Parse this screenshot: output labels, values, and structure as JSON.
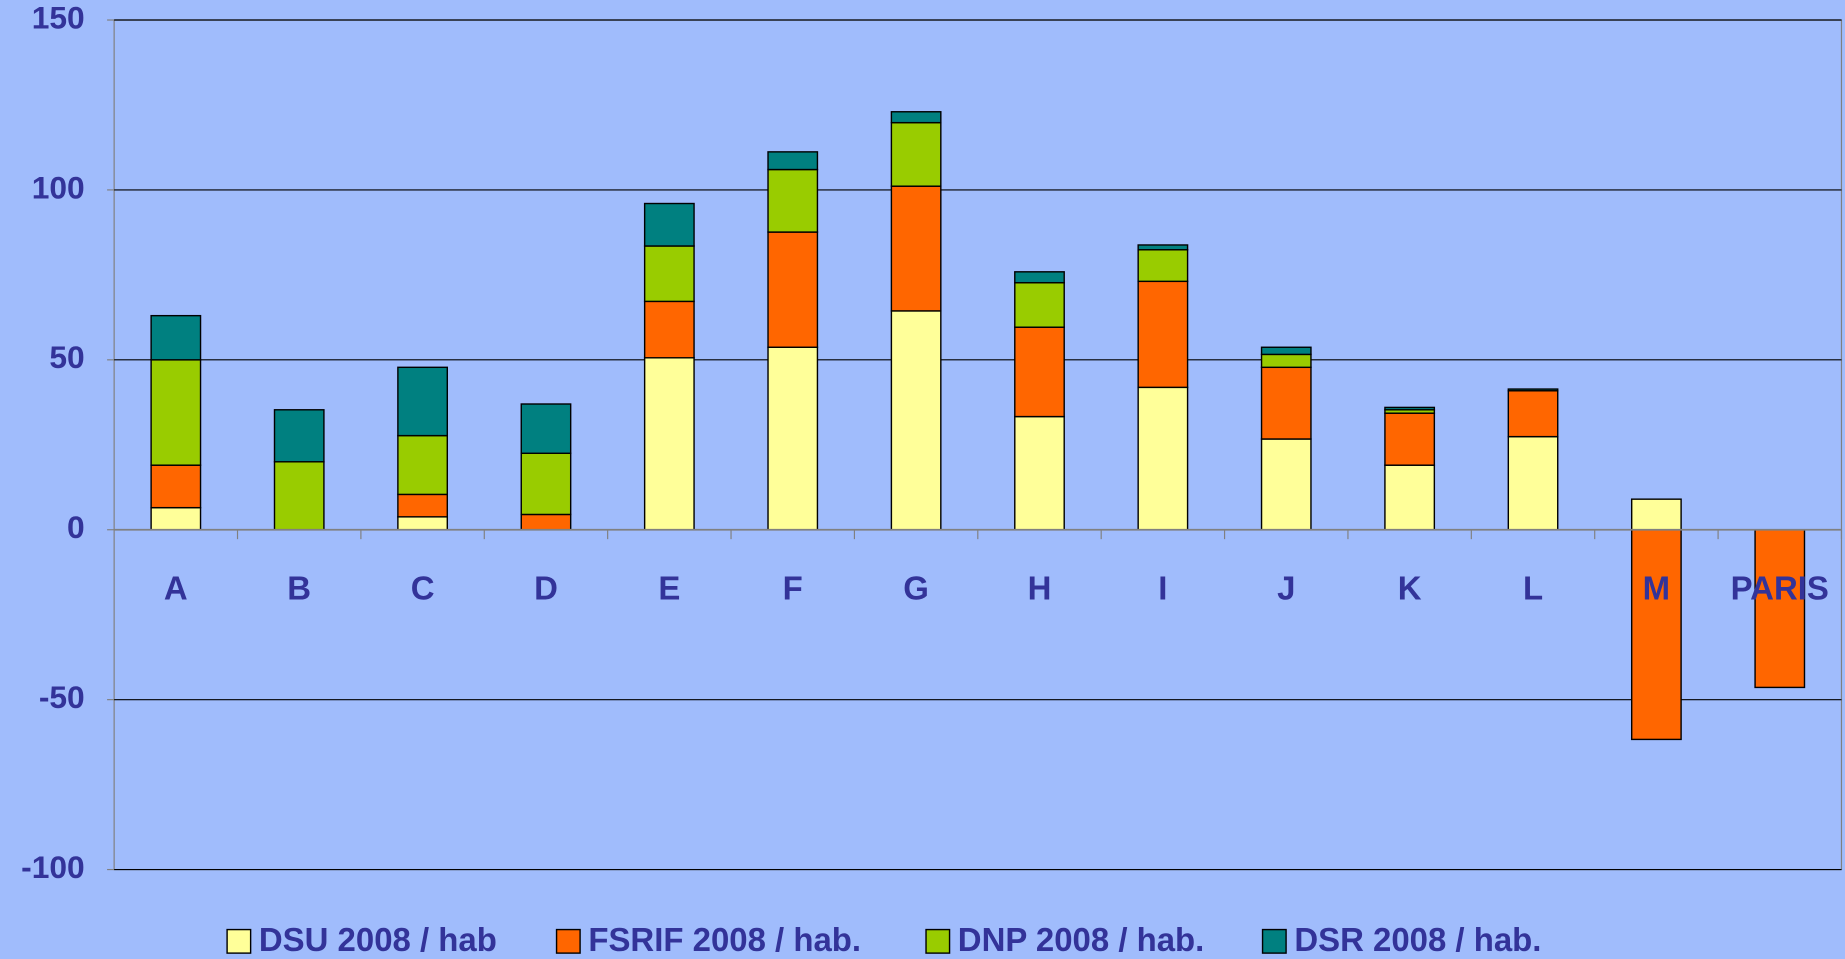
{
  "chart_data": {
    "type": "bar",
    "stacked": true,
    "categories": [
      "A",
      "B",
      "C",
      "D",
      "E",
      "F",
      "G",
      "H",
      "I",
      "J",
      "K",
      "L",
      "M",
      "PARIS"
    ],
    "series": [
      {
        "name": "DSU 2008 / hab",
        "color": "#ffff99",
        "values": [
          6.5,
          0,
          3.8,
          0,
          50.6,
          53.7,
          64.4,
          33.3,
          41.9,
          26.7,
          19,
          27.4,
          9,
          0
        ]
      },
      {
        "name": "FSRIF 2008 / hab.",
        "color": "#ff6600",
        "values": [
          12.5,
          0,
          6.6,
          4.5,
          16.6,
          33.9,
          36.7,
          26.3,
          31.2,
          21.1,
          15.3,
          13.5,
          -61.7,
          -46.4
        ]
      },
      {
        "name": "DNP 2008 / hab.",
        "color": "#99cc00",
        "values": [
          31,
          20,
          17.3,
          18,
          16.3,
          18.4,
          18.7,
          13.1,
          9.3,
          3.8,
          1,
          0,
          0,
          0
        ]
      },
      {
        "name": "DSR 2008 / hab.",
        "color": "#008080",
        "values": [
          13,
          15.3,
          20.1,
          14.5,
          12.5,
          5.2,
          3.2,
          3.2,
          1.4,
          2.1,
          0.7,
          0.5,
          0,
          0
        ]
      }
    ],
    "ylim": [
      -100,
      150
    ],
    "yticks": [
      -100,
      -50,
      0,
      50,
      100,
      150
    ],
    "grid": true
  }
}
